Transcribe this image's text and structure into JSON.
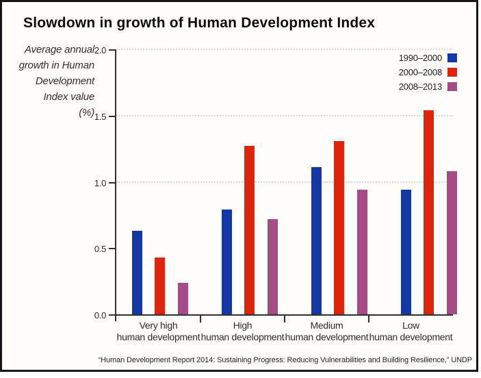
{
  "title": "Slowdown in growth of Human Development Index",
  "y_axis_label": "Average annual\ngrowth in Human\nDevelopment\nIndex value\n(%)",
  "legend": {
    "items": [
      {
        "label": "1990–2000",
        "color": "#1437a6"
      },
      {
        "label": "2000–2008",
        "color": "#de240b"
      },
      {
        "label": "2008–2013",
        "color": "#a54b86"
      }
    ]
  },
  "source": "“Human Development Report 2014: Sustaining Progress: Reducing Vulnerabilities and Building Resilience,” UNDP",
  "chart_data": {
    "type": "bar",
    "title": "Slowdown in growth of Human Development Index",
    "ylabel": "Average annual growth in Human Development Index value (%)",
    "categories": [
      "Very high\nhuman development",
      "High\nhuman development",
      "Medium\nhuman development",
      "Low\nhuman development"
    ],
    "series": [
      {
        "name": "1990–2000",
        "color": "#1437a6",
        "values": [
          0.63,
          0.79,
          1.11,
          0.94
        ]
      },
      {
        "name": "2000–2008",
        "color": "#de240b",
        "values": [
          0.43,
          1.27,
          1.31,
          1.54
        ]
      },
      {
        "name": "2008–2013",
        "color": "#a54b86",
        "values": [
          0.24,
          0.72,
          0.94,
          1.08
        ]
      }
    ],
    "ylim": [
      0,
      2.0
    ],
    "yticks": [
      "0.0",
      "0.5",
      "1.0",
      "1.5",
      "2.0"
    ],
    "gridlines_at": [
      1.0,
      1.5,
      2.0
    ],
    "grid_style": "dotted",
    "legend_position": "top-right",
    "source": "“Human Development Report 2014: Sustaining Progress: Reducing Vulnerabilities and Building Resilience,” UNDP"
  }
}
